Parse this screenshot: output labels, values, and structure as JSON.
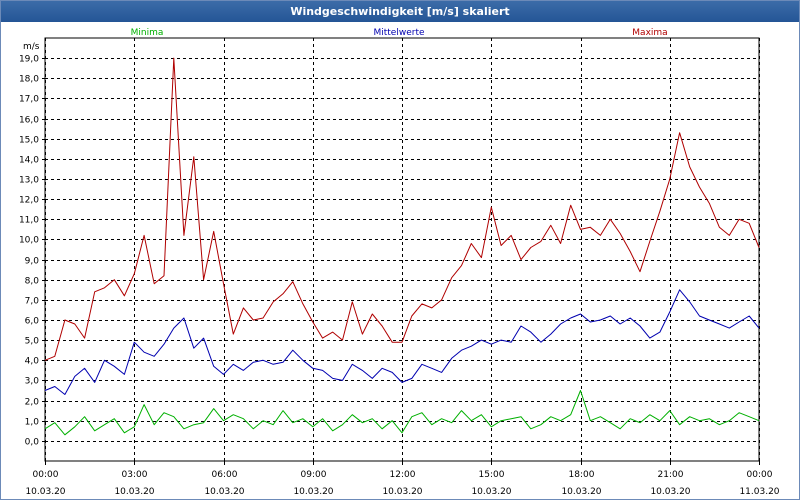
{
  "window": {
    "title": "Windgeschwindigkeit [m/s] skaliert"
  },
  "chart_data": {
    "type": "line",
    "title": "Windgeschwindigkeit [m/s] skaliert",
    "ylabel": "m/s",
    "ylim": [
      -1,
      20
    ],
    "yticks": [
      "0,0",
      "1,0",
      "2,0",
      "3,0",
      "4,0",
      "5,0",
      "6,0",
      "7,0",
      "8,0",
      "9,0",
      "10,0",
      "11,0",
      "12,0",
      "13,0",
      "14,0",
      "15,0",
      "16,0",
      "17,0",
      "18,0",
      "19,0"
    ],
    "xlim_hours": [
      0,
      24
    ],
    "xticks": [
      {
        "time": "00:00",
        "date": "10.03.20"
      },
      {
        "time": "03:00",
        "date": "10.03.20"
      },
      {
        "time": "06:00",
        "date": "10.03.20"
      },
      {
        "time": "09:00",
        "date": "10.03.20"
      },
      {
        "time": "12:00",
        "date": "10.03.20"
      },
      {
        "time": "15:00",
        "date": "10.03.20"
      },
      {
        "time": "18:00",
        "date": "10.03.20"
      },
      {
        "time": "21:00",
        "date": "10.03.20"
      },
      {
        "time": "00:00",
        "date": "11.03.20"
      }
    ],
    "grid": true,
    "legend_position": "top",
    "series": [
      {
        "name": "Minima",
        "color": "#00b000",
        "x": [
          0,
          0.33,
          0.67,
          1,
          1.33,
          1.67,
          2,
          2.33,
          2.67,
          3,
          3.33,
          3.67,
          4,
          4.33,
          4.67,
          5,
          5.33,
          5.67,
          6,
          6.33,
          6.67,
          7,
          7.33,
          7.67,
          8,
          8.33,
          8.67,
          9,
          9.33,
          9.67,
          10,
          10.33,
          10.67,
          11,
          11.33,
          11.67,
          12,
          12.33,
          12.67,
          13,
          13.33,
          13.67,
          14,
          14.33,
          14.67,
          15,
          15.33,
          15.67,
          16,
          16.33,
          16.67,
          17,
          17.33,
          17.67,
          18,
          18.33,
          18.67,
          19,
          19.33,
          19.67,
          20,
          20.33,
          20.67,
          21,
          21.33,
          21.67,
          22,
          22.33,
          22.67,
          23,
          23.33,
          23.67,
          24
        ],
        "y": [
          0.6,
          0.9,
          0.3,
          0.7,
          1.2,
          0.5,
          0.8,
          1.1,
          0.4,
          0.7,
          1.8,
          0.8,
          1.4,
          1.2,
          0.6,
          0.8,
          0.9,
          1.6,
          1.0,
          1.3,
          1.1,
          0.6,
          1.0,
          0.8,
          1.5,
          0.9,
          1.1,
          0.7,
          1.1,
          0.5,
          0.8,
          1.3,
          0.9,
          1.1,
          0.6,
          1.0,
          0.4,
          1.2,
          1.4,
          0.8,
          1.1,
          0.9,
          1.5,
          1.0,
          1.3,
          0.7,
          1.0,
          1.1,
          1.2,
          0.6,
          0.8,
          1.2,
          1.0,
          1.3,
          2.5,
          1.0,
          1.2,
          0.9,
          0.6,
          1.1,
          0.9,
          1.3,
          1.0,
          1.5,
          0.8,
          1.2,
          1.0,
          1.1,
          0.8,
          1.0,
          1.4,
          1.2,
          1.0
        ]
      },
      {
        "name": "Mittelwerte",
        "color": "#0000b0",
        "x": [
          0,
          0.33,
          0.67,
          1,
          1.33,
          1.67,
          2,
          2.33,
          2.67,
          3,
          3.33,
          3.67,
          4,
          4.33,
          4.67,
          5,
          5.33,
          5.67,
          6,
          6.33,
          6.67,
          7,
          7.33,
          7.67,
          8,
          8.33,
          8.67,
          9,
          9.33,
          9.67,
          10,
          10.33,
          10.67,
          11,
          11.33,
          11.67,
          12,
          12.33,
          12.67,
          13,
          13.33,
          13.67,
          14,
          14.33,
          14.67,
          15,
          15.33,
          15.67,
          16,
          16.33,
          16.67,
          17,
          17.33,
          17.67,
          18,
          18.33,
          18.67,
          19,
          19.33,
          19.67,
          20,
          20.33,
          20.67,
          21,
          21.33,
          21.67,
          22,
          22.33,
          22.67,
          23,
          23.33,
          23.67,
          24
        ],
        "y": [
          2.5,
          2.7,
          2.3,
          3.2,
          3.6,
          2.9,
          4.0,
          3.7,
          3.3,
          4.9,
          4.4,
          4.2,
          4.8,
          5.6,
          6.1,
          4.6,
          5.1,
          3.7,
          3.3,
          3.8,
          3.5,
          3.9,
          4.0,
          3.8,
          3.9,
          4.5,
          4.0,
          3.6,
          3.5,
          3.1,
          3.0,
          3.8,
          3.5,
          3.1,
          3.6,
          3.4,
          2.9,
          3.1,
          3.8,
          3.6,
          3.4,
          4.1,
          4.5,
          4.7,
          5.0,
          4.8,
          5.0,
          4.9,
          5.7,
          5.4,
          4.9,
          5.3,
          5.8,
          6.1,
          6.3,
          5.9,
          6.0,
          6.2,
          5.8,
          6.1,
          5.7,
          5.1,
          5.4,
          6.4,
          7.5,
          6.9,
          6.2,
          6.0,
          5.8,
          5.6,
          5.9,
          6.2,
          5.6
        ]
      },
      {
        "name": "Maxima",
        "color": "#b00000",
        "x": [
          0,
          0.33,
          0.67,
          1,
          1.33,
          1.67,
          2,
          2.33,
          2.67,
          3,
          3.33,
          3.67,
          4,
          4.33,
          4.67,
          5,
          5.33,
          5.67,
          6,
          6.33,
          6.67,
          7,
          7.33,
          7.67,
          8,
          8.33,
          8.67,
          9,
          9.33,
          9.67,
          10,
          10.33,
          10.67,
          11,
          11.33,
          11.67,
          12,
          12.33,
          12.67,
          13,
          13.33,
          13.67,
          14,
          14.33,
          14.67,
          15,
          15.33,
          15.67,
          16,
          16.33,
          16.67,
          17,
          17.33,
          17.67,
          18,
          18.33,
          18.67,
          19,
          19.33,
          19.67,
          20,
          20.33,
          20.67,
          21,
          21.33,
          21.67,
          22,
          22.33,
          22.67,
          23,
          23.33,
          23.67,
          24
        ],
        "y": [
          4.0,
          4.2,
          6.0,
          5.8,
          5.1,
          7.4,
          7.6,
          8.0,
          7.2,
          8.3,
          10.2,
          7.8,
          8.2,
          19.0,
          10.2,
          14.1,
          8.0,
          10.4,
          7.8,
          5.3,
          6.6,
          6.0,
          6.1,
          6.9,
          7.3,
          7.9,
          6.8,
          5.9,
          5.1,
          5.4,
          5.0,
          6.9,
          5.3,
          6.3,
          5.7,
          4.9,
          4.9,
          6.2,
          6.8,
          6.6,
          7.0,
          8.1,
          8.7,
          9.8,
          9.1,
          11.6,
          9.7,
          10.2,
          9.0,
          9.6,
          9.9,
          10.7,
          9.8,
          11.7,
          10.5,
          10.6,
          10.2,
          11.0,
          10.3,
          9.4,
          8.4,
          9.9,
          11.4,
          13.0,
          15.3,
          13.6,
          12.6,
          11.8,
          10.6,
          10.2,
          11.0,
          10.8,
          9.6
        ]
      }
    ]
  }
}
